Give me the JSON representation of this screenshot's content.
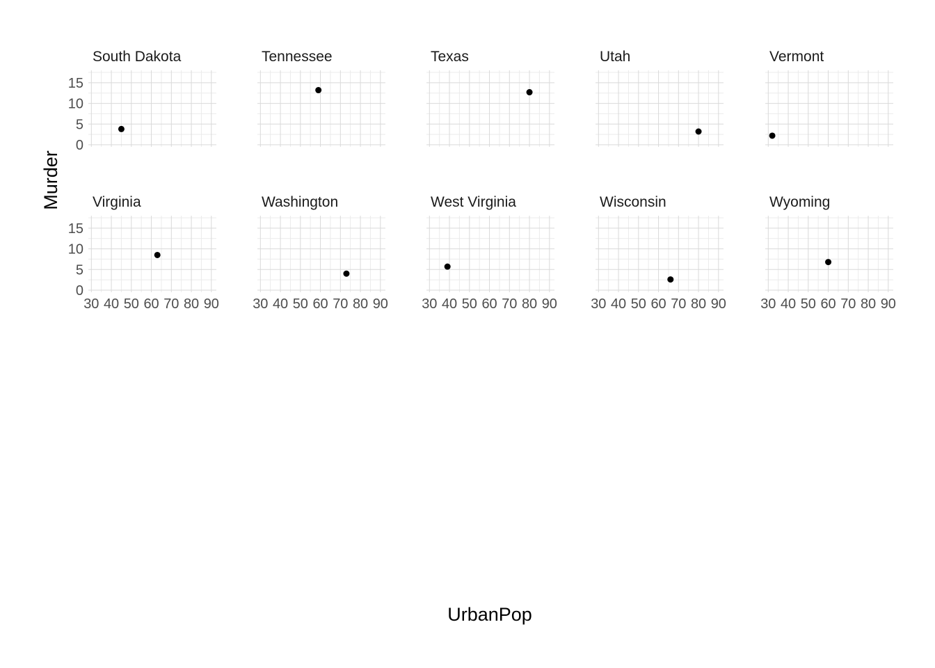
{
  "chart_data": {
    "type": "scatter",
    "xlabel": "UrbanPop",
    "ylabel": "Murder",
    "xlim": [
      28.5,
      92.5
    ],
    "ylim": [
      -0.5,
      18
    ],
    "x_ticks": [
      "30",
      "40",
      "50",
      "60",
      "70",
      "80",
      "90"
    ],
    "y_ticks": [
      "0",
      "5",
      "10",
      "15"
    ],
    "grid": true,
    "point_color": "#000000",
    "panels": [
      {
        "name": "South Dakota",
        "x": [
          45
        ],
        "y": [
          3.8
        ]
      },
      {
        "name": "Tennessee",
        "x": [
          59
        ],
        "y": [
          13.2
        ]
      },
      {
        "name": "Texas",
        "x": [
          80
        ],
        "y": [
          12.7
        ]
      },
      {
        "name": "Utah",
        "x": [
          80
        ],
        "y": [
          3.2
        ]
      },
      {
        "name": "Vermont",
        "x": [
          32
        ],
        "y": [
          2.2
        ]
      },
      {
        "name": "Virginia",
        "x": [
          63
        ],
        "y": [
          8.5
        ]
      },
      {
        "name": "Washington",
        "x": [
          73
        ],
        "y": [
          4.0
        ]
      },
      {
        "name": "West Virginia",
        "x": [
          39
        ],
        "y": [
          5.7
        ]
      },
      {
        "name": "Wisconsin",
        "x": [
          66
        ],
        "y": [
          2.6
        ]
      },
      {
        "name": "Wyoming",
        "x": [
          60
        ],
        "y": [
          6.8
        ]
      }
    ]
  }
}
